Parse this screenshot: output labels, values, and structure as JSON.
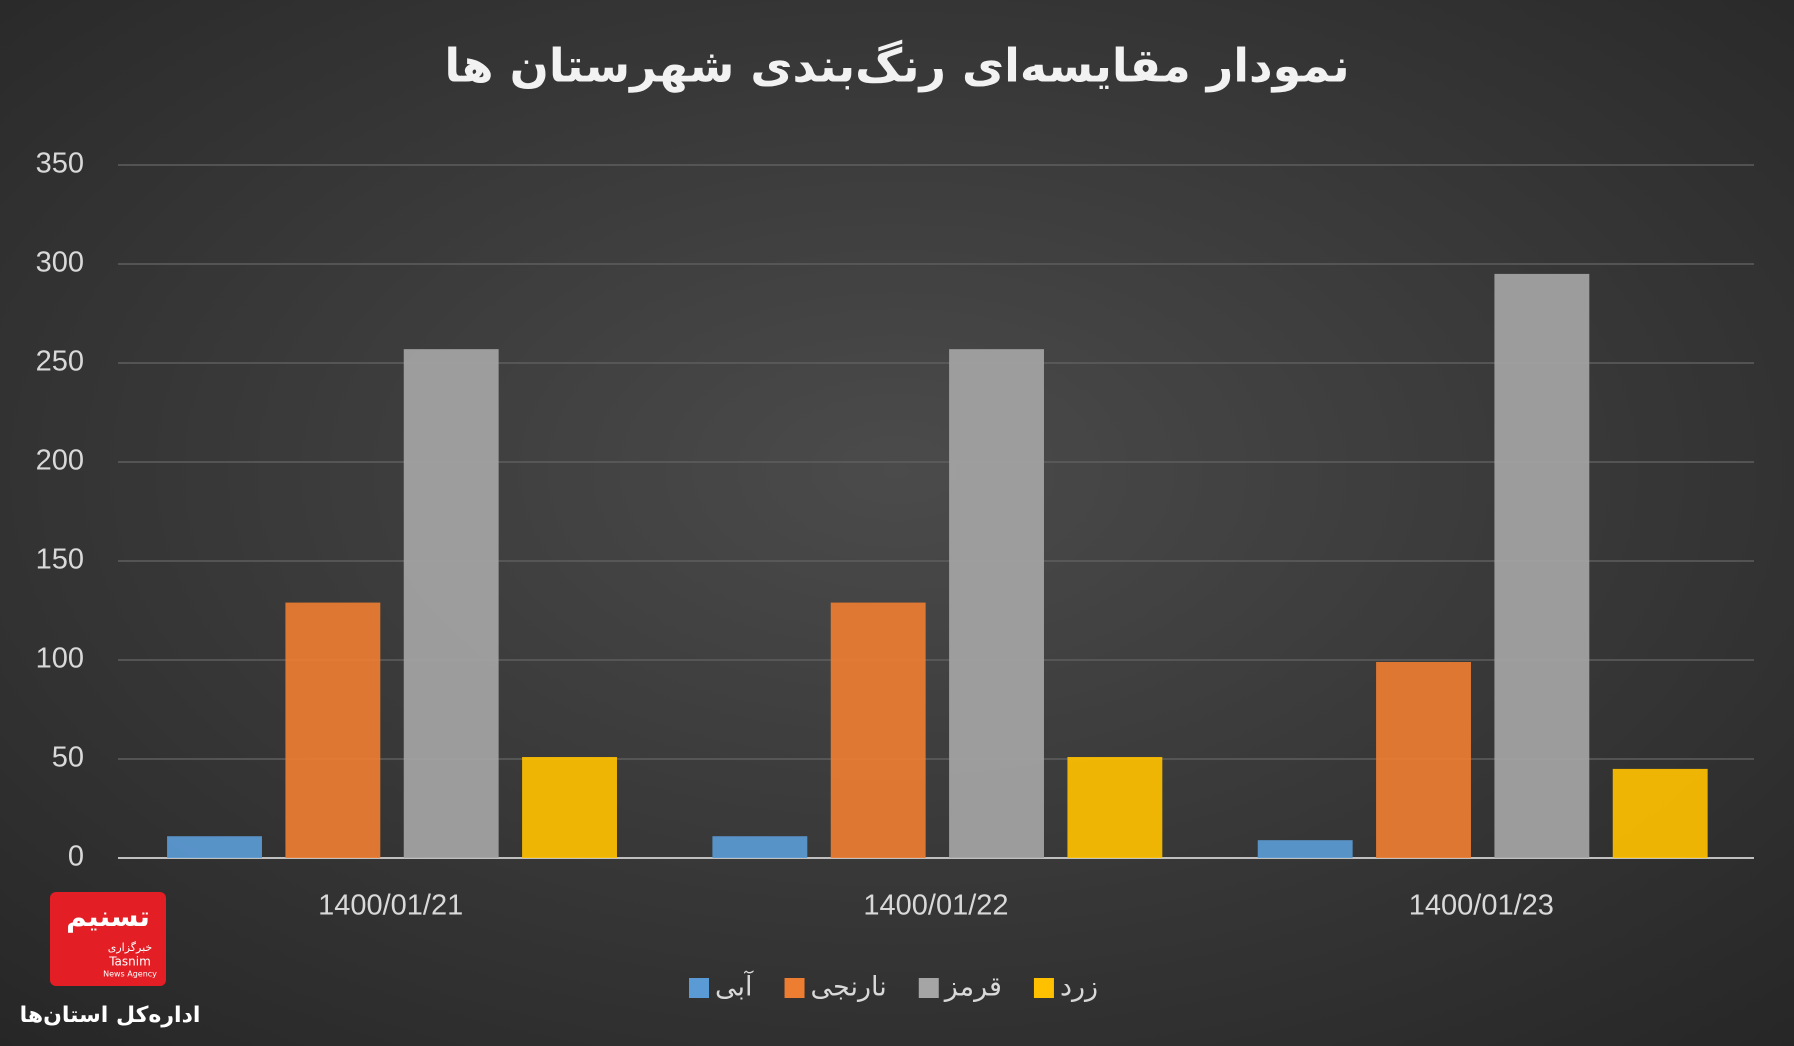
{
  "chart_data": {
    "type": "bar",
    "title": "نمودار مقایسه‌ای رنگ‌بندی شهرستان ها",
    "categories": [
      "1400/01/21",
      "1400/01/22",
      "1400/01/23"
    ],
    "series": [
      {
        "name": "آبی",
        "color": "#5b9bd5",
        "values": [
          11,
          11,
          9
        ]
      },
      {
        "name": "نارنجی",
        "color": "#ed7d31",
        "values": [
          129,
          129,
          99
        ]
      },
      {
        "name": "قرمز",
        "color": "#a5a5a5",
        "values": [
          257,
          257,
          295
        ]
      },
      {
        "name": "زرد",
        "color": "#ffc000",
        "values": [
          51,
          51,
          45
        ]
      }
    ],
    "ylim": [
      0,
      350
    ],
    "yticks": [
      0,
      50,
      100,
      150,
      200,
      250,
      300,
      350
    ],
    "grid": true,
    "legend": "bottom"
  },
  "logo": {
    "persian": "تسنیم",
    "agency": "خبرگزاری",
    "latin": "Tasnim",
    "subtitle": "News Agency",
    "caption": "اداره‌کل استان‌ها"
  }
}
